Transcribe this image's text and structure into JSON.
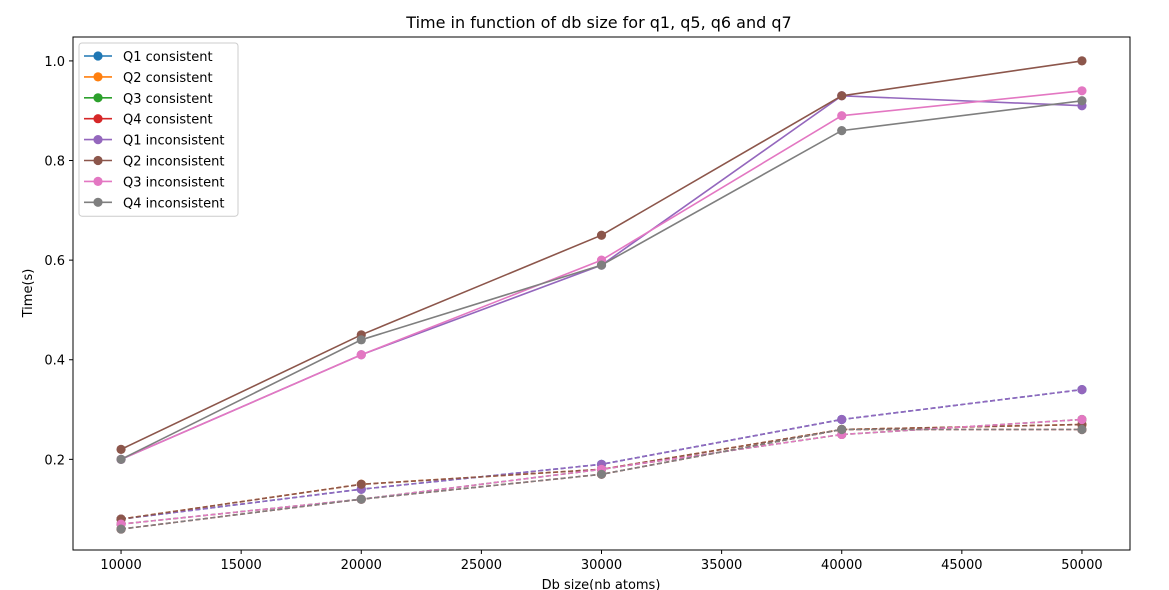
{
  "chart_data": {
    "type": "line",
    "title": "Time in function of db size for q1, q5, q6 and q7",
    "xlabel": "Db size(nb atoms)",
    "ylabel": "Time(s)",
    "x": [
      10000,
      20000,
      30000,
      40000,
      50000
    ],
    "xlim": [
      8000,
      52000
    ],
    "ylim": [
      0.018,
      1.048
    ],
    "xticks": [
      10000,
      15000,
      20000,
      25000,
      30000,
      35000,
      40000,
      45000,
      50000
    ],
    "yticks": [
      0.2,
      0.4,
      0.6,
      0.8,
      1.0
    ],
    "xtick_labels": [
      "10000",
      "15000",
      "20000",
      "25000",
      "30000",
      "35000",
      "40000",
      "45000",
      "50000"
    ],
    "ytick_labels": [
      "0.2",
      "0.4",
      "0.6",
      "0.8",
      "1.0"
    ],
    "grid": false,
    "legend_position": "top-left",
    "series": [
      {
        "name": "Q1 consistent",
        "color": "#1f77b4",
        "style": "dashed",
        "values": [
          0.08,
          0.14,
          0.19,
          0.28,
          0.34
        ]
      },
      {
        "name": "Q2 consistent",
        "color": "#ff7f0e",
        "style": "dashed",
        "values": [
          0.08,
          0.15,
          0.18,
          0.26,
          0.27
        ]
      },
      {
        "name": "Q3 consistent",
        "color": "#2ca02c",
        "style": "dashed",
        "values": [
          0.07,
          0.12,
          0.18,
          0.25,
          0.28
        ]
      },
      {
        "name": "Q4 consistent",
        "color": "#d62728",
        "style": "dashed",
        "values": [
          0.06,
          0.12,
          0.17,
          0.26,
          0.26
        ]
      },
      {
        "name": "Q1 inconsistent",
        "color": "#9467bd",
        "style": "solid",
        "values": [
          0.2,
          0.41,
          0.59,
          0.93,
          0.91
        ]
      },
      {
        "name": "Q2 inconsistent",
        "color": "#8c564b",
        "style": "solid",
        "values": [
          0.22,
          0.45,
          0.65,
          0.93,
          1.0
        ]
      },
      {
        "name": "Q3 inconsistent",
        "color": "#e377c2",
        "style": "solid",
        "values": [
          0.2,
          0.41,
          0.6,
          0.89,
          0.94
        ]
      },
      {
        "name": "Q4 inconsistent",
        "color": "#7f7f7f",
        "style": "solid",
        "values": [
          0.2,
          0.44,
          0.59,
          0.86,
          0.92
        ]
      }
    ],
    "overlay_series": [
      {
        "color": "#9467bd",
        "style": "dashed",
        "values": [
          0.08,
          0.14,
          0.19,
          0.28,
          0.34
        ]
      },
      {
        "color": "#8c564b",
        "style": "dashed",
        "values": [
          0.08,
          0.15,
          0.18,
          0.26,
          0.27
        ]
      },
      {
        "color": "#e377c2",
        "style": "dashed",
        "values": [
          0.07,
          0.12,
          0.18,
          0.25,
          0.28
        ]
      },
      {
        "color": "#7f7f7f",
        "style": "dashed",
        "values": [
          0.06,
          0.12,
          0.17,
          0.26,
          0.26
        ]
      }
    ]
  }
}
